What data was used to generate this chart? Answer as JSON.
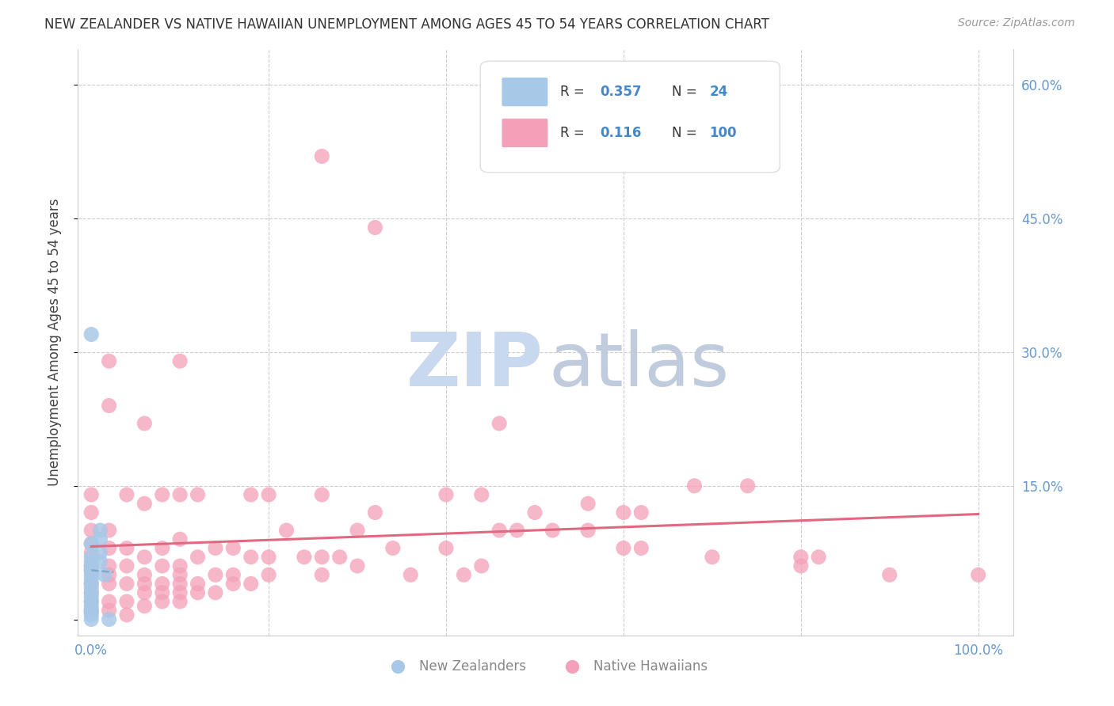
{
  "title": "NEW ZEALANDER VS NATIVE HAWAIIAN UNEMPLOYMENT AMONG AGES 45 TO 54 YEARS CORRELATION CHART",
  "source": "Source: ZipAtlas.com",
  "ylabel": "Unemployment Among Ages 45 to 54 years",
  "ytick_vals": [
    0.0,
    0.15,
    0.3,
    0.45,
    0.6
  ],
  "ytick_labels_right": [
    "",
    "15.0%",
    "30.0%",
    "45.0%",
    "60.0%"
  ],
  "xtick_vals": [
    0.0,
    0.2,
    0.4,
    0.6,
    0.8,
    1.0
  ],
  "xtick_labels": [
    "0.0%",
    "",
    "",
    "",
    "",
    "100.0%"
  ],
  "xlim": [
    -0.015,
    1.04
  ],
  "ylim": [
    -0.018,
    0.64
  ],
  "nz_R": 0.357,
  "nz_N": 24,
  "nh_R": 0.116,
  "nh_N": 100,
  "nz_color": "#a8c8e8",
  "nh_color": "#f4a0b8",
  "trend_nz_color": "#7aaad0",
  "trend_nh_color": "#e06880",
  "title_color": "#333333",
  "axis_label_color": "#6699cc",
  "legend_r_color": "#4488cc",
  "watermark_zip_color": "#c8d8ee",
  "watermark_atlas_color": "#c0ccdd",
  "nz_points": [
    [
      0.0,
      0.32
    ],
    [
      0.0,
      0.085
    ],
    [
      0.0,
      0.07
    ],
    [
      0.0,
      0.065
    ],
    [
      0.0,
      0.06
    ],
    [
      0.0,
      0.055
    ],
    [
      0.0,
      0.05
    ],
    [
      0.0,
      0.045
    ],
    [
      0.0,
      0.04
    ],
    [
      0.0,
      0.035
    ],
    [
      0.0,
      0.03
    ],
    [
      0.0,
      0.025
    ],
    [
      0.0,
      0.02
    ],
    [
      0.0,
      0.015
    ],
    [
      0.0,
      0.01
    ],
    [
      0.0,
      0.008
    ],
    [
      0.0,
      0.005
    ],
    [
      0.0,
      0.0
    ],
    [
      0.01,
      0.1
    ],
    [
      0.01,
      0.09
    ],
    [
      0.01,
      0.075
    ],
    [
      0.01,
      0.065
    ],
    [
      0.015,
      0.05
    ],
    [
      0.02,
      0.0
    ]
  ],
  "nh_points": [
    [
      0.0,
      0.14
    ],
    [
      0.0,
      0.12
    ],
    [
      0.0,
      0.1
    ],
    [
      0.0,
      0.085
    ],
    [
      0.0,
      0.075
    ],
    [
      0.0,
      0.06
    ],
    [
      0.0,
      0.055
    ],
    [
      0.0,
      0.04
    ],
    [
      0.0,
      0.03
    ],
    [
      0.0,
      0.02
    ],
    [
      0.0,
      0.01
    ],
    [
      0.02,
      0.29
    ],
    [
      0.02,
      0.24
    ],
    [
      0.02,
      0.1
    ],
    [
      0.02,
      0.08
    ],
    [
      0.02,
      0.06
    ],
    [
      0.02,
      0.05
    ],
    [
      0.02,
      0.04
    ],
    [
      0.02,
      0.02
    ],
    [
      0.02,
      0.01
    ],
    [
      0.04,
      0.14
    ],
    [
      0.04,
      0.08
    ],
    [
      0.04,
      0.06
    ],
    [
      0.04,
      0.04
    ],
    [
      0.04,
      0.02
    ],
    [
      0.04,
      0.005
    ],
    [
      0.06,
      0.22
    ],
    [
      0.06,
      0.13
    ],
    [
      0.06,
      0.07
    ],
    [
      0.06,
      0.05
    ],
    [
      0.06,
      0.04
    ],
    [
      0.06,
      0.03
    ],
    [
      0.06,
      0.015
    ],
    [
      0.08,
      0.14
    ],
    [
      0.08,
      0.08
    ],
    [
      0.08,
      0.06
    ],
    [
      0.08,
      0.04
    ],
    [
      0.08,
      0.03
    ],
    [
      0.08,
      0.02
    ],
    [
      0.1,
      0.29
    ],
    [
      0.1,
      0.14
    ],
    [
      0.1,
      0.09
    ],
    [
      0.1,
      0.06
    ],
    [
      0.1,
      0.05
    ],
    [
      0.1,
      0.04
    ],
    [
      0.1,
      0.03
    ],
    [
      0.1,
      0.02
    ],
    [
      0.12,
      0.14
    ],
    [
      0.12,
      0.07
    ],
    [
      0.12,
      0.04
    ],
    [
      0.12,
      0.03
    ],
    [
      0.14,
      0.08
    ],
    [
      0.14,
      0.05
    ],
    [
      0.14,
      0.03
    ],
    [
      0.16,
      0.08
    ],
    [
      0.16,
      0.05
    ],
    [
      0.16,
      0.04
    ],
    [
      0.18,
      0.14
    ],
    [
      0.18,
      0.07
    ],
    [
      0.18,
      0.04
    ],
    [
      0.2,
      0.14
    ],
    [
      0.2,
      0.07
    ],
    [
      0.2,
      0.05
    ],
    [
      0.22,
      0.1
    ],
    [
      0.24,
      0.07
    ],
    [
      0.26,
      0.52
    ],
    [
      0.26,
      0.14
    ],
    [
      0.26,
      0.07
    ],
    [
      0.26,
      0.05
    ],
    [
      0.28,
      0.07
    ],
    [
      0.3,
      0.1
    ],
    [
      0.3,
      0.06
    ],
    [
      0.32,
      0.44
    ],
    [
      0.32,
      0.12
    ],
    [
      0.34,
      0.08
    ],
    [
      0.36,
      0.05
    ],
    [
      0.4,
      0.14
    ],
    [
      0.4,
      0.08
    ],
    [
      0.42,
      0.05
    ],
    [
      0.44,
      0.14
    ],
    [
      0.44,
      0.06
    ],
    [
      0.46,
      0.22
    ],
    [
      0.46,
      0.1
    ],
    [
      0.48,
      0.1
    ],
    [
      0.5,
      0.12
    ],
    [
      0.52,
      0.1
    ],
    [
      0.56,
      0.13
    ],
    [
      0.56,
      0.1
    ],
    [
      0.6,
      0.12
    ],
    [
      0.6,
      0.08
    ],
    [
      0.62,
      0.12
    ],
    [
      0.62,
      0.08
    ],
    [
      0.68,
      0.15
    ],
    [
      0.7,
      0.07
    ],
    [
      0.74,
      0.15
    ],
    [
      0.8,
      0.07
    ],
    [
      0.8,
      0.06
    ],
    [
      0.82,
      0.07
    ],
    [
      0.9,
      0.05
    ],
    [
      1.0,
      0.05
    ]
  ]
}
